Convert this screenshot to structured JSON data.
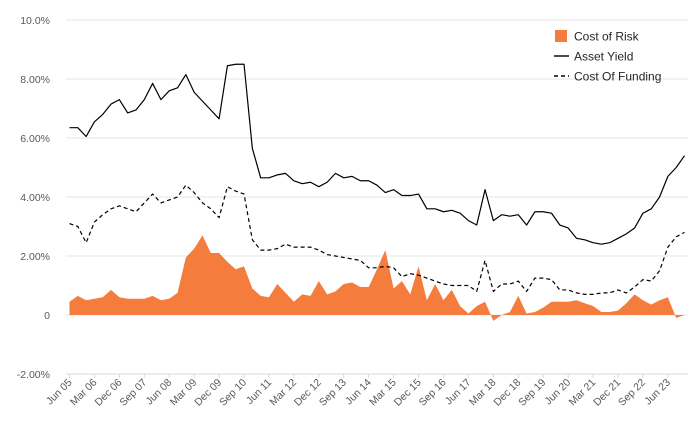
{
  "chart_data": {
    "type": "line",
    "y_axis": {
      "min": -2.0,
      "max": 10.0,
      "step": 2.0,
      "format": "percent"
    },
    "y_tick_labels": [
      "-2.00%",
      "0",
      "2.00%",
      "4.00%",
      "6.00%",
      "8.00%",
      "10.0%"
    ],
    "x_tick_labels": [
      "Jun 05",
      "Mar 06",
      "Dec 06",
      "Sep 07",
      "Jun 08",
      "Mar 09",
      "Dec 09",
      "Sep 10",
      "Jun 11",
      "Mar 12",
      "Dec 12",
      "Sep 13",
      "Jun 14",
      "Mar 15",
      "Dec 15",
      "Sep 16",
      "Jun 17",
      "Mar 18",
      "Dec 18",
      "Sep 19",
      "Jun 20",
      "Mar 21",
      "Dec 21",
      "Sep 22",
      "Jun 23"
    ],
    "x_start": "Jun 05",
    "x_frequency": "quarterly",
    "grid": "horizontal",
    "legend_position": "top-right",
    "series": [
      {
        "name": "Cost of Risk",
        "kind": "area",
        "color": "#f47c3c",
        "values": [
          0.45,
          0.65,
          0.5,
          0.55,
          0.6,
          0.85,
          0.6,
          0.55,
          0.55,
          0.55,
          0.65,
          0.5,
          0.55,
          0.75,
          1.95,
          2.25,
          2.7,
          2.1,
          2.1,
          1.8,
          1.55,
          1.65,
          0.9,
          0.65,
          0.6,
          1.05,
          0.75,
          0.45,
          0.7,
          0.65,
          1.15,
          0.7,
          0.8,
          1.05,
          1.1,
          0.95,
          0.95,
          1.55,
          2.2,
          0.9,
          1.15,
          0.7,
          1.65,
          0.5,
          1.05,
          0.5,
          0.85,
          0.3,
          0.05,
          0.3,
          0.45,
          -0.2,
          0.0,
          0.1,
          0.65,
          0.05,
          0.1,
          0.25,
          0.45,
          0.45,
          0.45,
          0.5,
          0.4,
          0.3,
          0.1,
          0.1,
          0.15,
          0.4,
          0.7,
          0.5,
          0.35,
          0.5,
          0.6,
          -0.1,
          0.0
        ]
      },
      {
        "name": "Asset Yield",
        "kind": "line",
        "dash": "solid",
        "color": "#000000",
        "values": [
          6.35,
          6.35,
          6.05,
          6.55,
          6.8,
          7.15,
          7.3,
          6.85,
          6.95,
          7.3,
          7.85,
          7.3,
          7.6,
          7.7,
          8.15,
          7.55,
          7.25,
          6.95,
          6.65,
          8.45,
          8.5,
          8.5,
          5.65,
          4.65,
          4.65,
          4.75,
          4.8,
          4.55,
          4.45,
          4.5,
          4.35,
          4.5,
          4.8,
          4.65,
          4.7,
          4.55,
          4.55,
          4.4,
          4.15,
          4.25,
          4.05,
          4.05,
          4.1,
          3.6,
          3.6,
          3.5,
          3.55,
          3.45,
          3.2,
          3.05,
          4.25,
          3.2,
          3.4,
          3.35,
          3.4,
          3.05,
          3.5,
          3.5,
          3.45,
          3.05,
          2.95,
          2.6,
          2.55,
          2.45,
          2.4,
          2.45,
          2.6,
          2.75,
          2.95,
          3.45,
          3.6,
          4.0,
          4.7,
          5.0,
          5.4
        ]
      },
      {
        "name": "Cost Of Funding",
        "kind": "line",
        "dash": "dashed",
        "color": "#000000",
        "values": [
          3.1,
          3.0,
          2.45,
          3.15,
          3.4,
          3.6,
          3.7,
          3.6,
          3.5,
          3.8,
          4.1,
          3.8,
          3.9,
          4.0,
          4.4,
          4.15,
          3.8,
          3.6,
          3.3,
          4.35,
          4.2,
          4.1,
          2.55,
          2.2,
          2.2,
          2.25,
          2.4,
          2.3,
          2.3,
          2.3,
          2.2,
          2.05,
          2.0,
          1.95,
          1.9,
          1.85,
          1.6,
          1.6,
          1.65,
          1.6,
          1.3,
          1.4,
          1.35,
          1.25,
          1.15,
          1.05,
          1.0,
          1.0,
          1.0,
          0.8,
          1.85,
          0.8,
          1.05,
          1.05,
          1.15,
          0.8,
          1.25,
          1.25,
          1.2,
          0.85,
          0.85,
          0.75,
          0.7,
          0.7,
          0.75,
          0.75,
          0.85,
          0.75,
          0.95,
          1.2,
          1.15,
          1.5,
          2.3,
          2.65,
          2.8
        ]
      }
    ]
  }
}
